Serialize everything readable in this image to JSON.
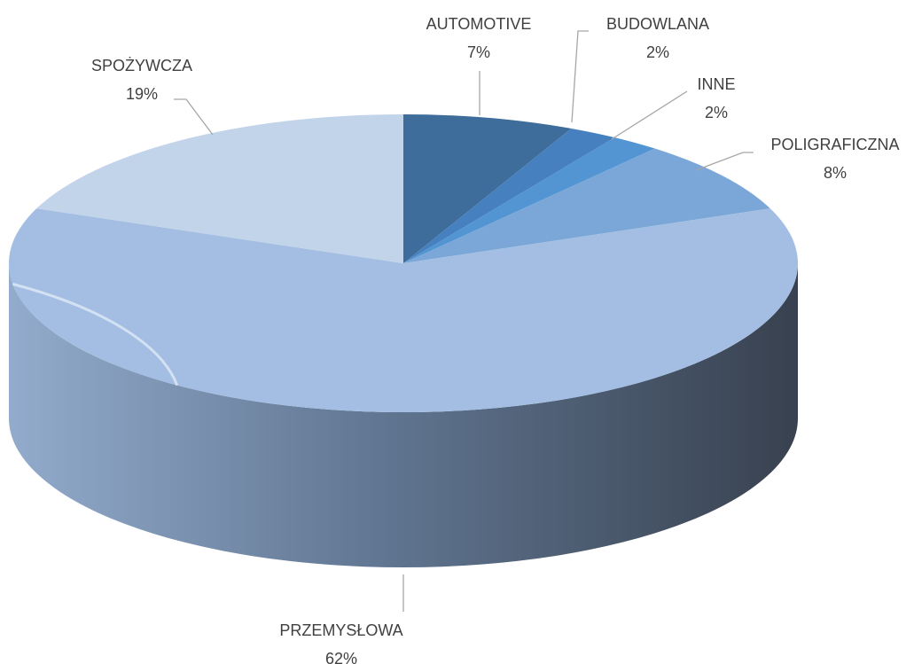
{
  "chart_data": {
    "type": "pie",
    "categories": [
      "AUTOMOTIVE",
      "BUDOWLANA",
      "INNE",
      "POLIGRAFICZNA",
      "PRZEMYSŁOWA",
      "SPOŻYWCZA"
    ],
    "values": [
      7,
      2,
      2,
      8,
      62,
      19
    ],
    "value_labels": [
      "7%",
      "2%",
      "2%",
      "8%",
      "62%",
      "19%"
    ],
    "colors": [
      "#3e6d9c",
      "#4680be",
      "#5295d2",
      "#7aa7d7",
      "#a3bee2",
      "#c2d4ea"
    ]
  }
}
